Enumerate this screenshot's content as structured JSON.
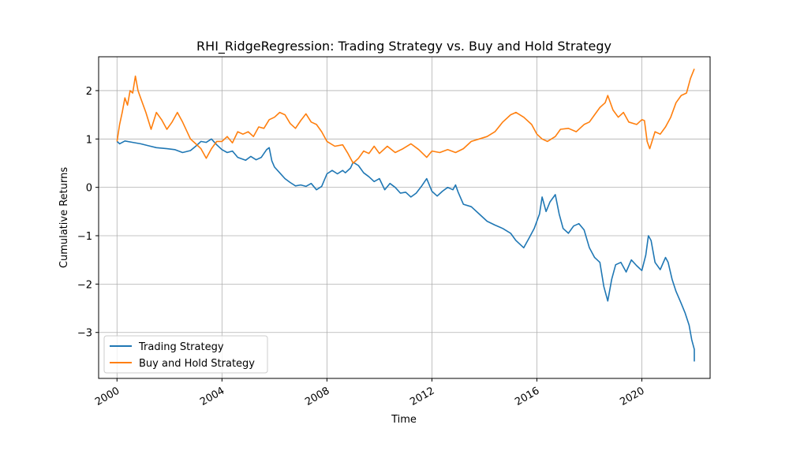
{
  "chart_data": {
    "type": "line",
    "title": "RHI_RidgeRegression: Trading Strategy vs. Buy and Hold Strategy",
    "xlabel": "Time",
    "ylabel": "Cumulative Returns",
    "xlim": [
      1999.3,
      2022.6
    ],
    "ylim": [
      -3.95,
      2.7
    ],
    "x_ticks": [
      2000,
      2004,
      2008,
      2012,
      2016,
      2020
    ],
    "x_tick_labels": [
      "2000",
      "2004",
      "2008",
      "2012",
      "2016",
      "2020"
    ],
    "y_ticks": [
      2,
      1,
      0,
      -1,
      -2,
      -3
    ],
    "y_tick_labels": [
      "2",
      "1",
      "0",
      "−1",
      "−2",
      "−3"
    ],
    "grid": true,
    "legend_position": "lower-left",
    "series": [
      {
        "name": "Trading Strategy",
        "color": "#1f77b4",
        "points": [
          [
            2000.0,
            0.95
          ],
          [
            2000.1,
            0.9
          ],
          [
            2000.3,
            0.96
          ],
          [
            2000.6,
            0.93
          ],
          [
            2000.9,
            0.9
          ],
          [
            2001.2,
            0.86
          ],
          [
            2001.5,
            0.82
          ],
          [
            2001.9,
            0.8
          ],
          [
            2002.2,
            0.78
          ],
          [
            2002.5,
            0.72
          ],
          [
            2002.8,
            0.76
          ],
          [
            2003.0,
            0.85
          ],
          [
            2003.2,
            0.95
          ],
          [
            2003.4,
            0.93
          ],
          [
            2003.6,
            1.0
          ],
          [
            2003.8,
            0.88
          ],
          [
            2004.0,
            0.78
          ],
          [
            2004.2,
            0.72
          ],
          [
            2004.4,
            0.75
          ],
          [
            2004.6,
            0.62
          ],
          [
            2004.9,
            0.56
          ],
          [
            2005.1,
            0.64
          ],
          [
            2005.3,
            0.57
          ],
          [
            2005.5,
            0.62
          ],
          [
            2005.7,
            0.78
          ],
          [
            2005.8,
            0.82
          ],
          [
            2005.9,
            0.55
          ],
          [
            2006.0,
            0.42
          ],
          [
            2006.2,
            0.3
          ],
          [
            2006.4,
            0.18
          ],
          [
            2006.6,
            0.1
          ],
          [
            2006.8,
            0.03
          ],
          [
            2007.0,
            0.05
          ],
          [
            2007.2,
            0.02
          ],
          [
            2007.4,
            0.08
          ],
          [
            2007.6,
            -0.05
          ],
          [
            2007.8,
            0.02
          ],
          [
            2008.0,
            0.28
          ],
          [
            2008.2,
            0.35
          ],
          [
            2008.4,
            0.28
          ],
          [
            2008.6,
            0.35
          ],
          [
            2008.7,
            0.3
          ],
          [
            2008.9,
            0.4
          ],
          [
            2009.0,
            0.52
          ],
          [
            2009.2,
            0.45
          ],
          [
            2009.4,
            0.3
          ],
          [
            2009.6,
            0.22
          ],
          [
            2009.8,
            0.12
          ],
          [
            2010.0,
            0.18
          ],
          [
            2010.2,
            -0.05
          ],
          [
            2010.4,
            0.08
          ],
          [
            2010.6,
            0.0
          ],
          [
            2010.8,
            -0.12
          ],
          [
            2011.0,
            -0.1
          ],
          [
            2011.2,
            -0.2
          ],
          [
            2011.4,
            -0.12
          ],
          [
            2011.6,
            0.02
          ],
          [
            2011.8,
            0.18
          ],
          [
            2012.0,
            -0.08
          ],
          [
            2012.2,
            -0.18
          ],
          [
            2012.4,
            -0.08
          ],
          [
            2012.6,
            0.0
          ],
          [
            2012.8,
            -0.05
          ],
          [
            2012.9,
            0.05
          ],
          [
            2013.0,
            -0.1
          ],
          [
            2013.2,
            -0.35
          ],
          [
            2013.5,
            -0.4
          ],
          [
            2013.8,
            -0.55
          ],
          [
            2014.1,
            -0.7
          ],
          [
            2014.4,
            -0.78
          ],
          [
            2014.7,
            -0.85
          ],
          [
            2015.0,
            -0.95
          ],
          [
            2015.2,
            -1.1
          ],
          [
            2015.5,
            -1.25
          ],
          [
            2015.7,
            -1.05
          ],
          [
            2015.9,
            -0.85
          ],
          [
            2016.1,
            -0.55
          ],
          [
            2016.2,
            -0.2
          ],
          [
            2016.35,
            -0.5
          ],
          [
            2016.5,
            -0.3
          ],
          [
            2016.7,
            -0.15
          ],
          [
            2016.85,
            -0.55
          ],
          [
            2017.0,
            -0.85
          ],
          [
            2017.2,
            -0.95
          ],
          [
            2017.4,
            -0.8
          ],
          [
            2017.6,
            -0.75
          ],
          [
            2017.8,
            -0.88
          ],
          [
            2018.0,
            -1.25
          ],
          [
            2018.2,
            -1.45
          ],
          [
            2018.4,
            -1.55
          ],
          [
            2018.55,
            -2.05
          ],
          [
            2018.7,
            -2.35
          ],
          [
            2018.85,
            -1.9
          ],
          [
            2019.0,
            -1.6
          ],
          [
            2019.2,
            -1.55
          ],
          [
            2019.4,
            -1.75
          ],
          [
            2019.6,
            -1.5
          ],
          [
            2019.8,
            -1.62
          ],
          [
            2020.0,
            -1.72
          ],
          [
            2020.15,
            -1.4
          ],
          [
            2020.25,
            -1.0
          ],
          [
            2020.35,
            -1.1
          ],
          [
            2020.5,
            -1.55
          ],
          [
            2020.7,
            -1.7
          ],
          [
            2020.9,
            -1.45
          ],
          [
            2021.0,
            -1.55
          ],
          [
            2021.15,
            -1.9
          ],
          [
            2021.3,
            -2.15
          ],
          [
            2021.5,
            -2.4
          ],
          [
            2021.65,
            -2.6
          ],
          [
            2021.8,
            -2.85
          ],
          [
            2021.9,
            -3.15
          ],
          [
            2022.0,
            -3.35
          ],
          [
            2022.0,
            -3.6
          ]
        ]
      },
      {
        "name": "Buy and Hold Strategy",
        "color": "#ff7f0e",
        "points": [
          [
            2000.0,
            0.95
          ],
          [
            2000.1,
            1.3
          ],
          [
            2000.2,
            1.55
          ],
          [
            2000.3,
            1.85
          ],
          [
            2000.4,
            1.7
          ],
          [
            2000.5,
            2.0
          ],
          [
            2000.6,
            1.95
          ],
          [
            2000.7,
            2.3
          ],
          [
            2000.8,
            2.0
          ],
          [
            2000.9,
            1.85
          ],
          [
            2001.1,
            1.55
          ],
          [
            2001.3,
            1.2
          ],
          [
            2001.5,
            1.55
          ],
          [
            2001.7,
            1.4
          ],
          [
            2001.9,
            1.2
          ],
          [
            2002.1,
            1.35
          ],
          [
            2002.3,
            1.55
          ],
          [
            2002.5,
            1.35
          ],
          [
            2002.8,
            1.0
          ],
          [
            2003.0,
            0.9
          ],
          [
            2003.2,
            0.8
          ],
          [
            2003.4,
            0.6
          ],
          [
            2003.6,
            0.8
          ],
          [
            2003.8,
            0.95
          ],
          [
            2004.0,
            0.95
          ],
          [
            2004.2,
            1.05
          ],
          [
            2004.4,
            0.92
          ],
          [
            2004.6,
            1.15
          ],
          [
            2004.8,
            1.1
          ],
          [
            2005.0,
            1.15
          ],
          [
            2005.2,
            1.05
          ],
          [
            2005.4,
            1.25
          ],
          [
            2005.6,
            1.22
          ],
          [
            2005.8,
            1.4
          ],
          [
            2006.0,
            1.45
          ],
          [
            2006.2,
            1.55
          ],
          [
            2006.4,
            1.5
          ],
          [
            2006.6,
            1.32
          ],
          [
            2006.8,
            1.22
          ],
          [
            2007.0,
            1.38
          ],
          [
            2007.2,
            1.52
          ],
          [
            2007.4,
            1.35
          ],
          [
            2007.6,
            1.3
          ],
          [
            2007.8,
            1.15
          ],
          [
            2008.0,
            0.95
          ],
          [
            2008.3,
            0.85
          ],
          [
            2008.6,
            0.88
          ],
          [
            2008.8,
            0.7
          ],
          [
            2009.0,
            0.5
          ],
          [
            2009.2,
            0.6
          ],
          [
            2009.4,
            0.75
          ],
          [
            2009.6,
            0.7
          ],
          [
            2009.8,
            0.85
          ],
          [
            2010.0,
            0.7
          ],
          [
            2010.3,
            0.85
          ],
          [
            2010.6,
            0.72
          ],
          [
            2010.9,
            0.8
          ],
          [
            2011.2,
            0.9
          ],
          [
            2011.5,
            0.78
          ],
          [
            2011.8,
            0.62
          ],
          [
            2012.0,
            0.75
          ],
          [
            2012.3,
            0.72
          ],
          [
            2012.6,
            0.78
          ],
          [
            2012.9,
            0.72
          ],
          [
            2013.2,
            0.8
          ],
          [
            2013.5,
            0.95
          ],
          [
            2013.8,
            1.0
          ],
          [
            2014.1,
            1.05
          ],
          [
            2014.4,
            1.15
          ],
          [
            2014.7,
            1.35
          ],
          [
            2015.0,
            1.5
          ],
          [
            2015.2,
            1.55
          ],
          [
            2015.5,
            1.45
          ],
          [
            2015.8,
            1.3
          ],
          [
            2016.0,
            1.1
          ],
          [
            2016.2,
            1.0
          ],
          [
            2016.4,
            0.95
          ],
          [
            2016.7,
            1.05
          ],
          [
            2016.9,
            1.2
          ],
          [
            2017.2,
            1.22
          ],
          [
            2017.5,
            1.15
          ],
          [
            2017.8,
            1.3
          ],
          [
            2018.0,
            1.35
          ],
          [
            2018.2,
            1.5
          ],
          [
            2018.4,
            1.65
          ],
          [
            2018.6,
            1.75
          ],
          [
            2018.7,
            1.9
          ],
          [
            2018.9,
            1.6
          ],
          [
            2019.1,
            1.45
          ],
          [
            2019.3,
            1.55
          ],
          [
            2019.5,
            1.35
          ],
          [
            2019.8,
            1.3
          ],
          [
            2020.0,
            1.4
          ],
          [
            2020.1,
            1.38
          ],
          [
            2020.2,
            0.95
          ],
          [
            2020.3,
            0.8
          ],
          [
            2020.5,
            1.15
          ],
          [
            2020.7,
            1.1
          ],
          [
            2020.9,
            1.25
          ],
          [
            2021.1,
            1.45
          ],
          [
            2021.3,
            1.75
          ],
          [
            2021.5,
            1.9
          ],
          [
            2021.7,
            1.95
          ],
          [
            2021.85,
            2.25
          ],
          [
            2022.0,
            2.45
          ]
        ]
      }
    ]
  }
}
